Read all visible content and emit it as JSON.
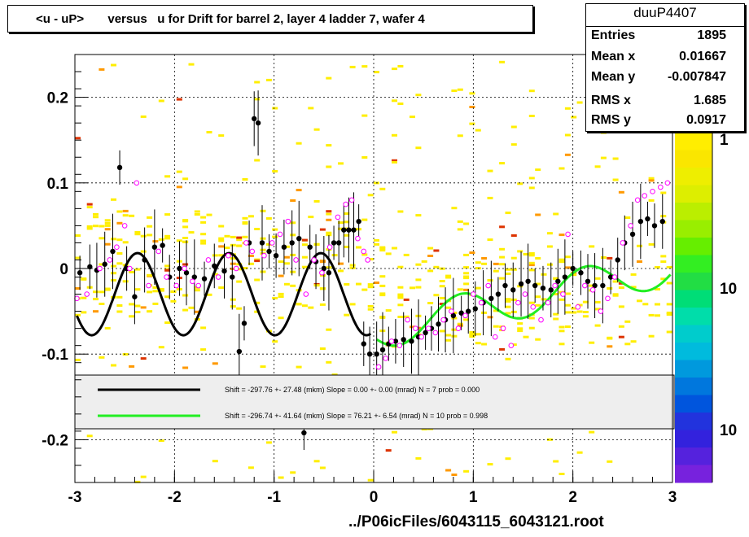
{
  "title": "<u - uP>       versus   u for Drift for barrel 2, layer 4 ladder 7, wafer 4",
  "stats": {
    "name": "duuP4407",
    "rows": [
      {
        "key": "Entries",
        "value": "1895"
      },
      {
        "key": "Mean x",
        "value": "0.01667"
      },
      {
        "key": "Mean y",
        "value": "-0.007847"
      },
      {
        "key": "RMS x",
        "value": "1.685"
      },
      {
        "key": "RMS y",
        "value": "0.0917"
      }
    ]
  },
  "x_title": "../P06icFiles/6043115_6043121.root",
  "palette_labels": [
    "1",
    "10",
    "10"
  ],
  "fit_legend": [
    {
      "color": "#000000",
      "text": "Shift =  -297.76 +- 27.48 (mkm) Slope =     0.00 +- 0.00 (mrad)  N = 7 prob = 0.000"
    },
    {
      "color": "#22ee22",
      "text": "Shift =  -296.74 +- 41.64 (mkm) Slope =    76.21 +- 6.54 (mrad)  N = 10 prob = 0.998"
    }
  ],
  "chart_data": {
    "type": "scatter",
    "xlim": [
      -3,
      3
    ],
    "ylim": [
      -0.25,
      0.25
    ],
    "x_ticks": [
      "-3",
      "-2",
      "-1",
      "0",
      "1",
      "2",
      "3"
    ],
    "y_ticks": [
      {
        "value": -0.2,
        "label": "-0.2"
      },
      {
        "value": -0.1,
        "label": "-0.1"
      },
      {
        "value": 0,
        "label": "0"
      },
      {
        "value": 0.1,
        "label": "0.1"
      },
      {
        "value": 0.2,
        "label": "0.2"
      }
    ],
    "grid": true,
    "legend_position": "bottom-inside",
    "colors": {
      "background_bins": "#ffee00",
      "orange_bins": "#ff9900",
      "red_bins": "#dd3300",
      "mean_points": "#000000",
      "open_points": "#ff00ff",
      "fit_black": "#000000",
      "fit_green": "#22ee22"
    },
    "series": [
      {
        "style": "black-filled-points-with-errors",
        "x": [
          -2.95,
          -2.85,
          -2.78,
          -2.7,
          -2.62,
          -2.55,
          -2.48,
          -2.4,
          -2.3,
          -2.2,
          -2.12,
          -2.05,
          -1.95,
          -1.88,
          -1.8,
          -1.7,
          -1.6,
          -1.5,
          -1.42,
          -1.35,
          -1.3,
          -1.25,
          -1.2,
          -1.16,
          -1.12,
          -1.05,
          -0.98,
          -0.9,
          -0.82,
          -0.75,
          -0.7,
          -0.64,
          -0.58,
          -0.5,
          -0.45,
          -0.4,
          -0.35,
          -0.3,
          -0.25,
          -0.2,
          -0.15,
          -0.1,
          -0.04,
          0.03,
          0.09,
          0.15,
          0.22,
          0.3,
          0.38,
          0.45,
          0.52,
          0.58,
          0.65,
          0.72,
          0.8,
          0.88,
          0.95,
          1.02,
          1.1,
          1.18,
          1.25,
          1.32,
          1.4,
          1.48,
          1.55,
          1.62,
          1.7,
          1.78,
          1.85,
          1.92,
          2.0,
          2.08,
          2.15,
          2.22,
          2.3,
          2.38,
          2.45,
          2.52,
          2.6,
          2.68,
          2.75,
          2.82,
          2.9
        ],
        "y": [
          -0.005,
          0.002,
          -0.002,
          0.005,
          0.02,
          0.118,
          0.0,
          -0.033,
          0.01,
          0.025,
          0.027,
          -0.01,
          0.0,
          -0.005,
          -0.01,
          -0.012,
          0.003,
          -0.003,
          -0.01,
          -0.097,
          -0.064,
          0.03,
          0.175,
          0.17,
          0.03,
          0.02,
          0.015,
          0.025,
          0.03,
          0.035,
          -0.192,
          0.025,
          0.008,
          0.0,
          -0.005,
          0.03,
          0.03,
          0.045,
          0.045,
          0.045,
          0.055,
          -0.088,
          -0.1,
          -0.1,
          -0.095,
          -0.088,
          -0.085,
          -0.083,
          -0.085,
          -0.08,
          -0.075,
          -0.07,
          -0.065,
          -0.06,
          -0.055,
          -0.052,
          -0.05,
          -0.047,
          -0.04,
          -0.035,
          -0.03,
          -0.02,
          -0.025,
          -0.018,
          -0.015,
          -0.02,
          -0.023,
          -0.025,
          -0.015,
          -0.01,
          0.0,
          -0.005,
          -0.015,
          -0.02,
          -0.02,
          -0.01,
          0.01,
          0.03,
          0.04,
          0.055,
          0.058,
          0.05,
          0.055
        ]
      },
      {
        "style": "magenta-open-points",
        "x": [
          -2.98,
          -2.88,
          -2.75,
          -2.65,
          -2.58,
          -2.5,
          -2.45,
          -2.38,
          -2.26,
          -2.16,
          -2.08,
          -1.98,
          -1.9,
          -1.82,
          -1.76,
          -1.66,
          -1.56,
          -1.46,
          -1.38,
          -1.28,
          -1.22,
          -1.1,
          -1.02,
          -0.94,
          -0.86,
          -0.78,
          -0.68,
          -0.6,
          -0.52,
          -0.44,
          -0.36,
          -0.28,
          -0.22,
          -0.16,
          -0.1,
          -0.06,
          0.05,
          0.12,
          0.18,
          0.26,
          0.34,
          0.42,
          0.48,
          0.55,
          0.62,
          0.7,
          0.78,
          0.85,
          0.92,
          1.0,
          1.08,
          1.15,
          1.22,
          1.3,
          1.38,
          1.45,
          1.52,
          1.6,
          1.68,
          1.75,
          1.82,
          1.9,
          1.95,
          2.05,
          2.12,
          2.2,
          2.28,
          2.35,
          2.42,
          2.5,
          2.58,
          2.65,
          2.72,
          2.8,
          2.88,
          2.95
        ],
        "y": [
          -0.035,
          -0.03,
          0.0,
          0.01,
          0.025,
          0.05,
          0.0,
          0.1,
          -0.02,
          0.02,
          -0.01,
          -0.02,
          0.0,
          -0.015,
          -0.02,
          0.01,
          -0.01,
          0.015,
          0.0,
          0.03,
          0.02,
          0.015,
          0.03,
          0.04,
          0.055,
          0.01,
          -0.03,
          0.01,
          -0.005,
          0.025,
          0.06,
          0.075,
          0.08,
          0.035,
          0.02,
          0.01,
          -0.115,
          -0.105,
          -0.085,
          -0.09,
          -0.06,
          -0.07,
          -0.08,
          -0.07,
          -0.075,
          -0.06,
          -0.05,
          -0.07,
          -0.055,
          -0.03,
          -0.04,
          -0.02,
          -0.08,
          -0.07,
          -0.09,
          -0.04,
          -0.03,
          -0.045,
          -0.06,
          -0.04,
          -0.02,
          -0.03,
          0.04,
          -0.045,
          -0.02,
          -0.025,
          -0.05,
          -0.035,
          -0.01,
          0.03,
          0.05,
          0.08,
          0.085,
          0.09,
          0.095,
          0.1
        ]
      }
    ],
    "fit_curves": [
      {
        "color": "#000000",
        "x_range": [
          -2.98,
          -0.03
        ],
        "label_ref": 0
      },
      {
        "color": "#22ee22",
        "x_range": [
          0.03,
          2.98
        ],
        "label_ref": 1
      }
    ]
  }
}
